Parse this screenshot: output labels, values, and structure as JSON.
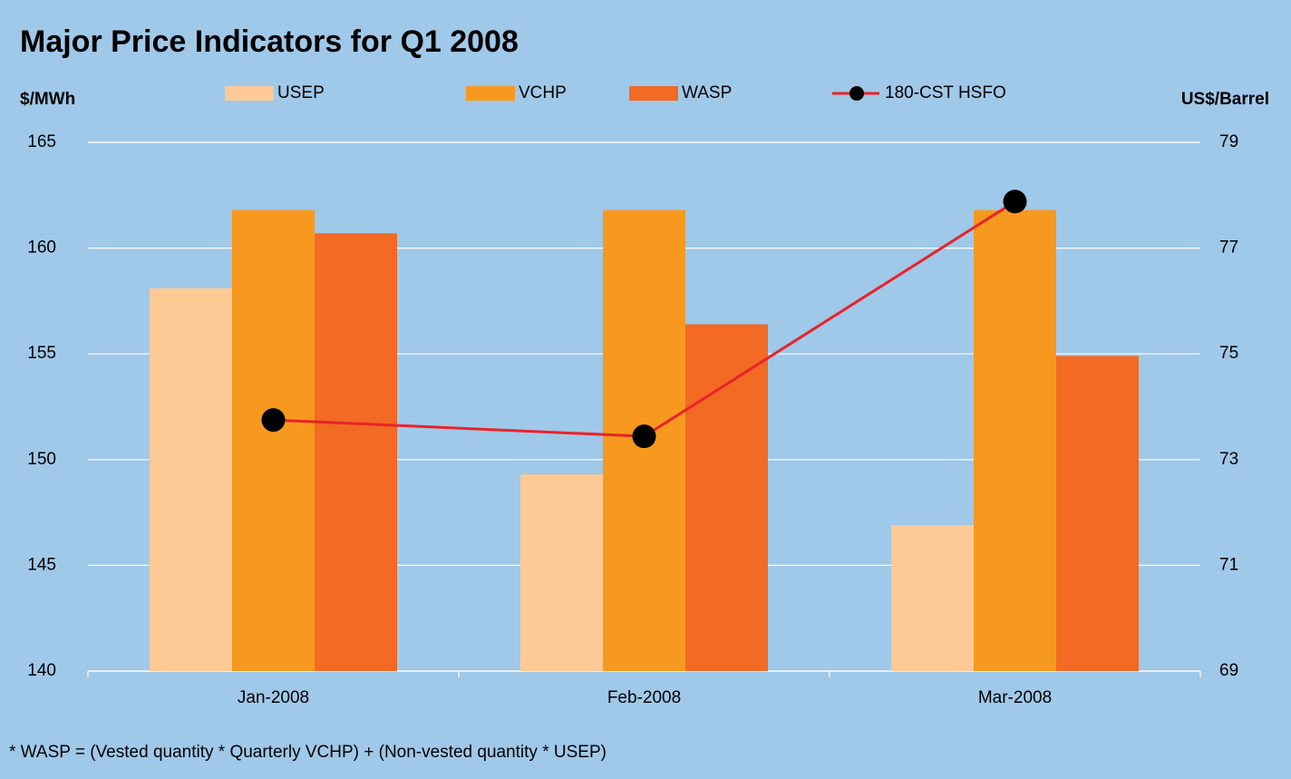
{
  "chart_data": {
    "type": "bar",
    "title": "Major Price Indicators for Q1 2008",
    "y_label": "$/MWh",
    "y2_label": "US$/Barrel",
    "footnote": "* WASP = (Vested quantity * Quarterly VCHP) + (Non-vested quantity * USEP)",
    "categories": [
      "Jan-2008",
      "Feb-2008",
      "Mar-2008"
    ],
    "series": [
      {
        "name": "USEP",
        "type": "bar",
        "color": "#fdca96",
        "values": [
          158.1,
          149.3,
          146.9
        ]
      },
      {
        "name": "VCHP",
        "type": "bar",
        "color": "#f7991e",
        "values": [
          161.8,
          161.8,
          161.8
        ]
      },
      {
        "name": "WASP",
        "type": "bar",
        "color": "#f26a24",
        "values": [
          160.7,
          156.4,
          154.9
        ]
      },
      {
        "name": "180-CST HSFO",
        "type": "line",
        "axis": "y2",
        "color": "#e8232a",
        "marker_color": "#000000",
        "values": [
          73.75,
          73.44,
          77.88
        ]
      }
    ],
    "ylim": [
      140,
      165
    ],
    "yticks": [
      140,
      145,
      150,
      155,
      160,
      165
    ],
    "y2lim": [
      69,
      79
    ],
    "y2ticks": [
      69,
      71,
      73,
      75,
      77,
      79
    ],
    "grid": true
  }
}
